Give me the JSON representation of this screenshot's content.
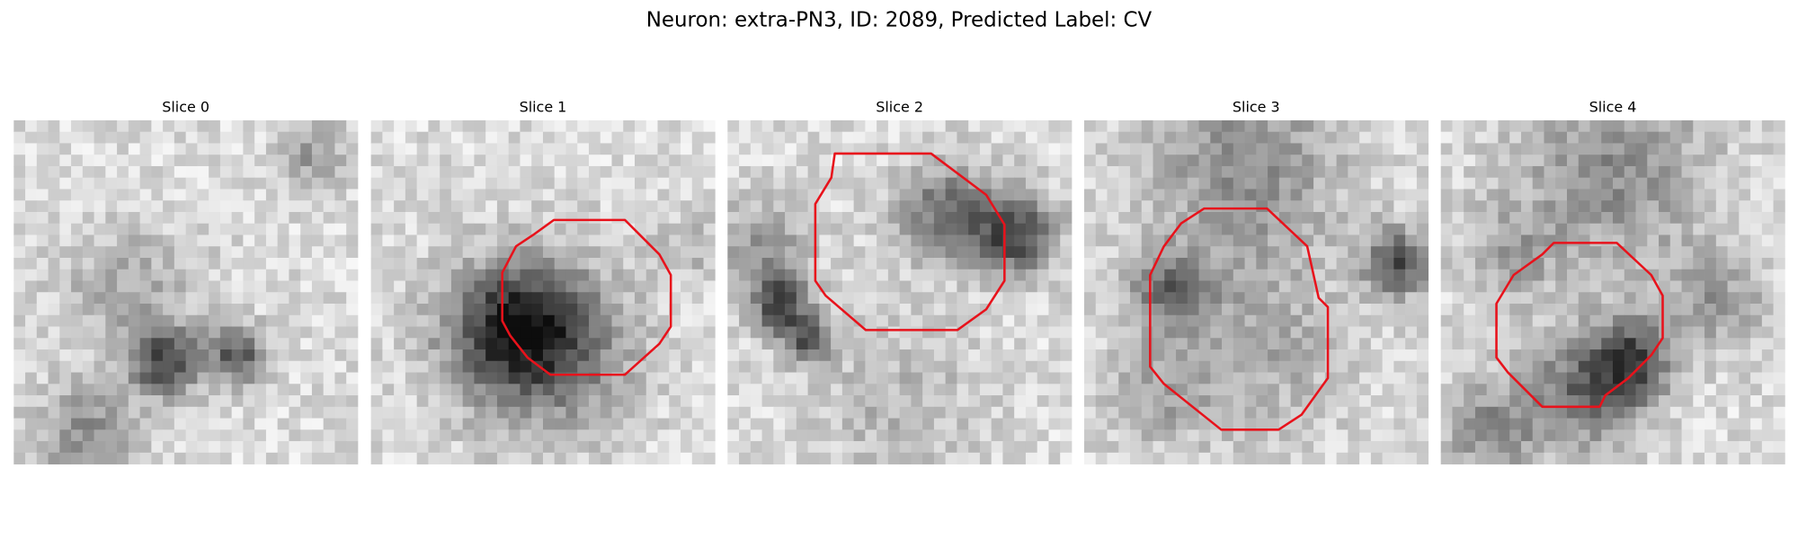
{
  "title": "Neuron: extra-PN3, ID: 2089, Predicted Label: CV",
  "panels": [
    {
      "title": "Slice 0"
    },
    {
      "title": "Slice 1"
    },
    {
      "title": "Slice 2"
    },
    {
      "title": "Slice 3"
    },
    {
      "title": "Slice 4"
    }
  ]
}
